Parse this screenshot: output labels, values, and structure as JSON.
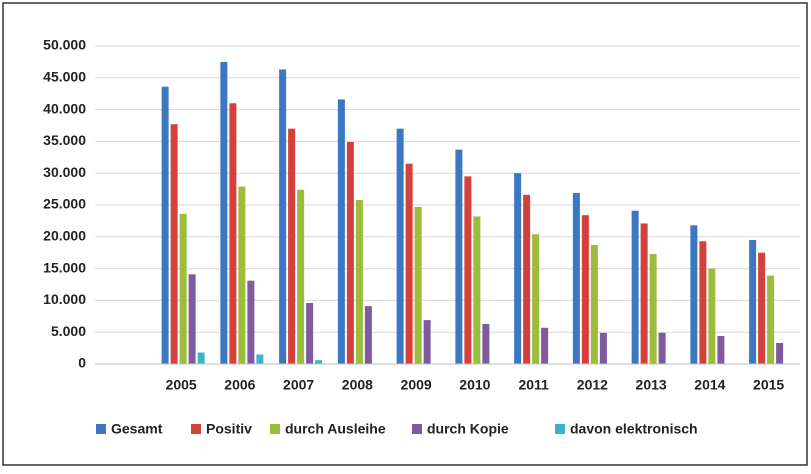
{
  "chart_data": {
    "type": "bar",
    "categories": [
      "2005",
      "2006",
      "2007",
      "2008",
      "2009",
      "2010",
      "2011",
      "2012",
      "2013",
      "2014",
      "2015"
    ],
    "series": [
      {
        "name": "Gesamt",
        "color": "#3b78c1",
        "values": [
          43600,
          47500,
          46300,
          41600,
          37000,
          33700,
          30000,
          26900,
          24100,
          21800,
          19500
        ]
      },
      {
        "name": "Positiv",
        "color": "#d5403a",
        "values": [
          37700,
          41000,
          37000,
          34900,
          31500,
          29500,
          26600,
          23400,
          22100,
          19300,
          17500
        ]
      },
      {
        "name": "durch Ausleihe",
        "color": "#9cbc3c",
        "values": [
          23600,
          27900,
          27400,
          25800,
          24700,
          23200,
          20400,
          18700,
          17300,
          15000,
          13900
        ]
      },
      {
        "name": "durch Kopie",
        "color": "#7e5b9f",
        "values": [
          14100,
          13100,
          9600,
          9100,
          6900,
          6300,
          5700,
          4900,
          4900,
          4400,
          3300
        ]
      },
      {
        "name": "davon elektronisch",
        "color": "#3cb3cb",
        "values": [
          1800,
          1500,
          600,
          null,
          null,
          null,
          null,
          null,
          null,
          null,
          null
        ]
      }
    ],
    "ylim": [
      0,
      50000
    ],
    "yticks": [
      0,
      {
        "value": 5000,
        "label": "5.000"
      },
      {
        "value": 10000,
        "label": "10.000"
      },
      {
        "value": 15000,
        "label": "15.000"
      },
      {
        "value": 20000,
        "label": "20.000"
      },
      {
        "value": 25000,
        "label": "25.000"
      },
      {
        "value": 30000,
        "label": "30.000"
      },
      {
        "value": 35000,
        "label": "35.000"
      },
      {
        "value": 40000,
        "label": "40.000"
      },
      {
        "value": 45000,
        "label": "45.000"
      },
      {
        "value": 50000,
        "label": "50.000"
      }
    ],
    "grid": true
  }
}
